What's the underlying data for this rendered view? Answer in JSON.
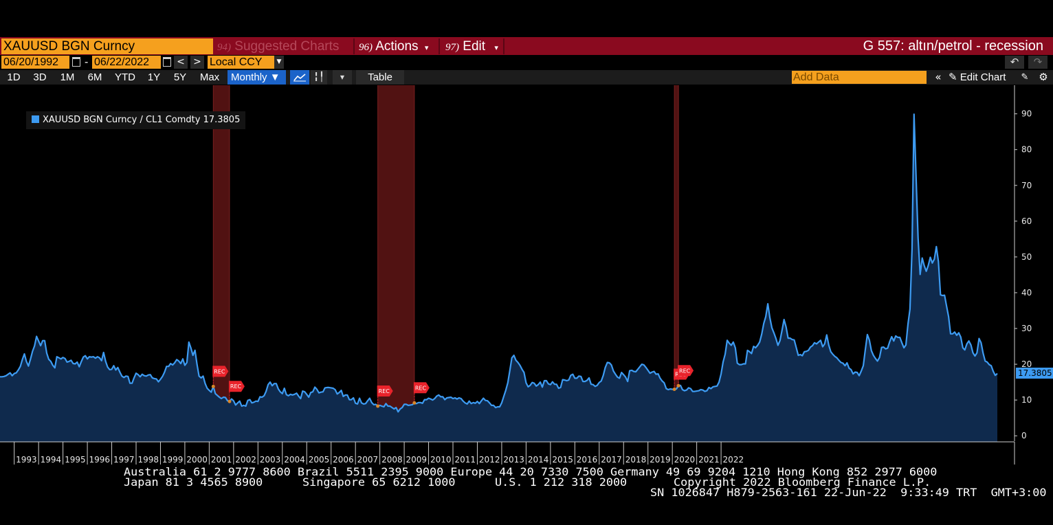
{
  "header": {
    "ticker": "XAUUSD BGN Curncy",
    "suggested": {
      "num": "94)",
      "label": "Suggested Charts"
    },
    "actions": {
      "num": "96)",
      "label": "Actions",
      "arrow": "▾"
    },
    "edit": {
      "num": "97)",
      "label": "Edit",
      "arrow": "▾"
    },
    "chart_title": "G 557: altın/petrol - recession"
  },
  "daterow": {
    "start": "06/20/1992",
    "dash": "-",
    "end": "06/22/2022",
    "prev": "<",
    "next": ">",
    "currency": "Local CCY",
    "undo": "↶",
    "redo": "↷"
  },
  "toolbar": {
    "periods": [
      "1D",
      "3D",
      "1M",
      "6M",
      "YTD",
      "1Y",
      "5Y",
      "Max"
    ],
    "frequency": "Monthly ▼",
    "table": "Table",
    "add_data_placeholder": "Add Data",
    "collapse": "«",
    "edit_chart": "✎ Edit Chart",
    "icons": [
      "line-chart-icon",
      "candlestick-icon",
      "dropdown-icon",
      "pencil-icon",
      "gear-icon"
    ]
  },
  "chart_data": {
    "type": "area",
    "series": [
      {
        "name": "XAUUSD BGN Curncy / CL1 Comdty 17.3805",
        "color": "#3d9bf2",
        "x_start": "1992-06",
        "frequency": "monthly",
        "values": [
          16.5,
          16.5,
          16.6,
          16.8,
          17.2,
          17.6,
          16.8,
          17.4,
          17.6,
          18.4,
          19.4,
          21.3,
          22.9,
          20.8,
          19.5,
          21.4,
          23.6,
          25.1,
          27.8,
          26.5,
          25.2,
          26.6,
          26.6,
          23.1,
          21.4,
          20.8,
          19.7,
          19.0,
          22.1,
          21.8,
          21.5,
          21.9,
          21.6,
          20.6,
          20.8,
          21.1,
          20.2,
          20.1,
          20.6,
          19.3,
          20.7,
          22.0,
          22.4,
          21.5,
          22.1,
          22.0,
          22.1,
          21.7,
          22.1,
          21.8,
          21.0,
          23.3,
          20.8,
          19.2,
          18.5,
          18.6,
          19.6,
          18.4,
          19.1,
          17.8,
          16.7,
          16.3,
          16.7,
          16.6,
          14.7,
          14.7,
          16.2,
          17.5,
          17.1,
          16.5,
          17.2,
          16.8,
          16.7,
          17.0,
          17.1,
          16.2,
          16.0,
          15.9,
          15.1,
          15.8,
          16.6,
          17.8,
          19.4,
          19.4,
          20.2,
          19.8,
          20.4,
          21.3,
          20.9,
          20.2,
          21.5,
          19.7,
          20.5,
          26.2,
          24.5,
          22.5,
          23.9,
          19.9,
          16.7,
          16.2,
          16.7,
          14.6,
          13.3,
          12.7,
          12.2,
          13.8,
          11.8,
          11.3,
          10.8,
          10.4,
          10.8,
          10.7,
          9.8,
          9.6,
          10.3,
          9.8,
          8.6,
          9.2,
          9.7,
          8.3,
          8.5,
          8.3,
          9.9,
          10.1,
          9.2,
          9.4,
          9.7,
          9.6,
          10.9,
          10.8,
          11.2,
          12.4,
          14.3,
          15.0,
          14.0,
          14.6,
          14.6,
          13.1,
          12.3,
          11.8,
          13.3,
          11.5,
          11.2,
          11.6,
          11.4,
          11.6,
          11.9,
          11.1,
          10.4,
          12.5,
          12.3,
          11.6,
          10.8,
          12.1,
          12.3,
          13.6,
          13.0,
          12.0,
          12.2,
          12.3,
          13.4,
          13.5,
          13.5,
          13.4,
          13.3,
          12.9,
          11.7,
          12.1,
          12.7,
          11.0,
          11.4,
          11.4,
          10.1,
          10.1,
          10.6,
          9.1,
          8.9,
          10.5,
          9.2,
          8.9,
          9.0,
          9.8,
          10.5,
          9.3,
          8.7,
          8.8,
          8.3,
          8.5,
          8.3,
          8.1,
          9.0,
          8.3,
          8.3,
          7.9,
          7.5,
          7.9,
          6.7,
          7.5,
          7.9,
          8.8,
          8.8,
          8.5,
          8.6,
          8.7,
          9.2,
          9.0,
          9.3,
          9.3,
          9.1,
          10.1,
          10.1,
          10.5,
          10.3,
          10.0,
          10.4,
          11.1,
          11.4,
          10.9,
          10.9,
          10.1,
          10.6,
          10.7,
          10.8,
          10.4,
          10.6,
          10.3,
          10.6,
          10.4,
          9.7,
          9.2,
          8.9,
          9.7,
          9.0,
          9.3,
          9.1,
          9.6,
          9.0,
          9.8,
          10.5,
          9.9,
          9.8,
          9.2,
          8.5,
          8.5,
          7.9,
          8.1,
          8.1,
          9.2,
          11.0,
          12.7,
          14.8,
          18.3,
          21.8,
          22.5,
          21.1,
          20.5,
          19.7,
          18.6,
          17.7,
          14.8,
          13.7,
          14.1,
          14.9,
          14.7,
          13.9,
          14.3,
          15.0,
          13.6,
          15.4,
          15.4,
          14.5,
          14.3,
          15.1,
          14.4,
          14.4,
          13.3,
          13.5,
          15.7,
          15.6,
          15.4,
          15.6,
          16.9,
          17.2,
          16.1,
          16.1,
          16.7,
          16.6,
          15.2,
          15.2,
          15.5,
          16.2,
          14.4,
          14.3,
          13.8,
          14.1,
          14.9,
          15.3,
          16.9,
          19.1,
          20.5,
          20.4,
          19.8,
          18.1,
          17.2,
          16.4,
          16.1,
          17.7,
          17.1,
          16.4,
          15.2,
          18.2,
          18.3,
          18.0,
          17.9,
          18.6,
          19.3,
          20.0,
          19.8,
          19.1,
          18.3,
          17.5,
          17.8,
          18.0,
          17.2,
          17.3,
          16.1,
          15.3,
          14.8,
          13.2,
          12.9,
          13.1,
          13.0,
          13.0,
          13.1,
          14.0,
          14.1,
          12.9,
          12.6,
          12.8,
          13.4,
          13.2,
          12.4,
          12.4,
          12.5,
          12.6,
          12.9,
          12.8,
          12.4,
          12.6,
          13.5,
          13.2,
          13.7,
          13.8,
          13.9,
          15.0,
          17.3,
          20.6,
          22.8,
          26.7,
          25.9,
          25.3,
          26.2,
          24.6,
          20.3,
          19.9,
          19.9,
          20.1,
          20.1,
          23.9,
          23.5,
          23.0,
          25.0,
          24.6,
          25.3,
          26.2,
          28.4,
          31.4,
          33.3,
          36.9,
          33.1,
          30.2,
          28.8,
          27.2,
          25.3,
          26.6,
          29.4,
          32.5,
          30.4,
          27.3,
          27.3,
          26.9,
          26.8,
          24.7,
          22.5,
          22.7,
          22.4,
          23.5,
          23.6,
          23.9,
          24.8,
          25.2,
          26.0,
          25.7,
          26.2,
          26.7,
          24.9,
          25.7,
          28.2,
          25.4,
          23.5,
          22.8,
          22.2,
          21.8,
          21.1,
          20.5,
          20.3,
          19.6,
          20.4,
          18.9,
          18.5,
          17.3,
          17.8,
          17.7,
          16.8,
          18.1,
          19.6,
          24.0,
          28.3,
          26.8,
          23.8,
          22.5,
          21.6,
          20.9,
          21.9,
          24.7,
          24.8,
          24.3,
          24.5,
          26.3,
          27.7,
          26.5,
          27.9,
          27.5,
          27.5,
          26.0,
          24.6,
          25.4,
          31.2,
          35.4,
          52.1,
          89.9,
          72.3,
          55.3,
          45.1,
          49.7,
          47.6,
          46.0,
          47.6,
          49.9,
          48.3,
          49.4,
          52.9,
          48.7,
          39.4,
          39.2,
          39.3,
          36.3,
          33.3,
          28.5,
          28.5,
          29.0,
          28.1,
          28.8,
          27.6,
          24.6,
          24.0,
          25.7,
          26.5,
          25.4,
          23.2,
          22.3,
          23.2,
          27.2,
          26.0,
          23.1,
          20.9,
          20.6,
          19.9,
          19.6,
          18.0,
          16.9,
          17.4
        ]
      }
    ],
    "x_ticks": [
      "1993",
      "1994",
      "1995",
      "1996",
      "1997",
      "1998",
      "1999",
      "2000",
      "2001",
      "2002",
      "2003",
      "2004",
      "2005",
      "2006",
      "2007",
      "2008",
      "2009",
      "2010",
      "2011",
      "2012",
      "2013",
      "2014",
      "2015",
      "2016",
      "2017",
      "2018",
      "2019",
      "2020",
      "2021",
      "2022"
    ],
    "y_ticks": [
      0,
      10,
      20,
      30,
      40,
      50,
      60,
      70,
      80,
      90
    ],
    "ylim": [
      -1.5,
      98
    ],
    "recessions": [
      {
        "start": "2001-03",
        "end": "2001-11"
      },
      {
        "start": "2007-12",
        "end": "2009-06"
      },
      {
        "start": "2020-02",
        "end": "2020-04"
      }
    ],
    "recession_marker_label": "REC",
    "last_value_label": "17.3805",
    "legend_position": "top-left",
    "grid": false,
    "colors": {
      "background": "#000000",
      "line": "#3d9bf2",
      "fill": "#0f2a4d",
      "recession": "#5a1414",
      "marker": "#e8232b"
    }
  },
  "footer": {
    "line1": "Australia 61 2 9777 8600 Brazil 5511 2395 9000 Europe 44 20 7330 7500 Germany 49 69 9204 1210 Hong Kong 852 2977 6000",
    "line2a": "Japan 81 3 4565 8900",
    "line2b": "Singapore 65 6212 1000",
    "line2c": "U.S. 1 212 318 2000",
    "line2d": "Copyright 2022 Bloomberg Finance L.P.",
    "line3": "SN 1026847 H879-2563-161 22-Jun-22  9:33:49 TRT  GMT+3:00"
  }
}
